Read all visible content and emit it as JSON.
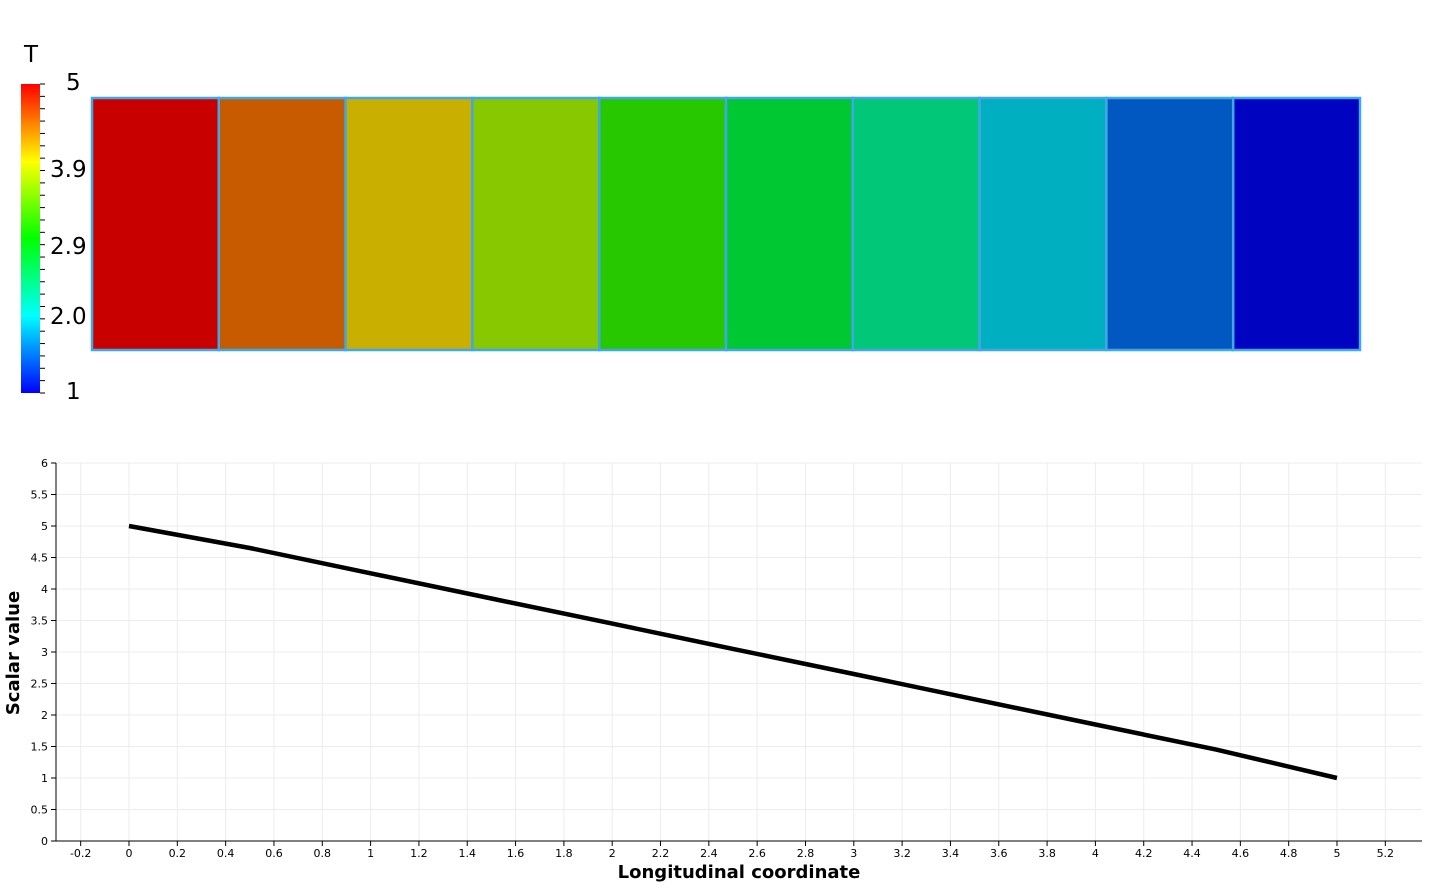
{
  "colorbar": {
    "title": "T",
    "labels": [
      "5",
      "3.9",
      "2.9",
      "2.0",
      "1"
    ],
    "label_values": [
      5,
      3.9,
      2.9,
      2.0,
      1
    ],
    "range": [
      1,
      5
    ]
  },
  "mesh": {
    "cell_values": [
      4.8,
      4.4,
      4.0,
      3.6,
      3.2,
      2.8,
      2.4,
      2.0,
      1.6,
      1.2
    ],
    "cell_colors": [
      "#c80000",
      "#c85a00",
      "#c8af00",
      "#87c800",
      "#28c800",
      "#00c832",
      "#00c878",
      "#00afc0",
      "#0058c0",
      "#0003c0"
    ],
    "edge_color": "#3fa8e8"
  },
  "chart_data": {
    "type": "line",
    "xlabel": "Longitudinal coordinate",
    "ylabel": "Scalar value",
    "xlim": [
      -0.3,
      5.45
    ],
    "ylim": [
      0,
      6
    ],
    "xticks": [
      "-0.2",
      "0",
      "0.2",
      "0.4",
      "0.6",
      "0.8",
      "1",
      "1.2",
      "1.4",
      "1.6",
      "1.8",
      "2",
      "2.2",
      "2.4",
      "2.6",
      "2.8",
      "3",
      "3.2",
      "3.4",
      "3.6",
      "3.8",
      "4",
      "4.2",
      "4.4",
      "4.6",
      "4.8",
      "5",
      "5.2"
    ],
    "yticks": [
      "0",
      "0.5",
      "1",
      "1.5",
      "2",
      "2.5",
      "3",
      "3.5",
      "4",
      "4.5",
      "5",
      "5.5",
      "6"
    ],
    "grid": true,
    "series": [
      {
        "color": "#000000",
        "x": [
          0,
          0.5,
          1,
          1.5,
          2,
          2.5,
          3,
          3.5,
          4,
          4.5,
          5
        ],
        "y": [
          5,
          4.65,
          4.25,
          3.85,
          3.45,
          3.05,
          2.65,
          2.25,
          1.85,
          1.45,
          1.0
        ]
      }
    ]
  }
}
